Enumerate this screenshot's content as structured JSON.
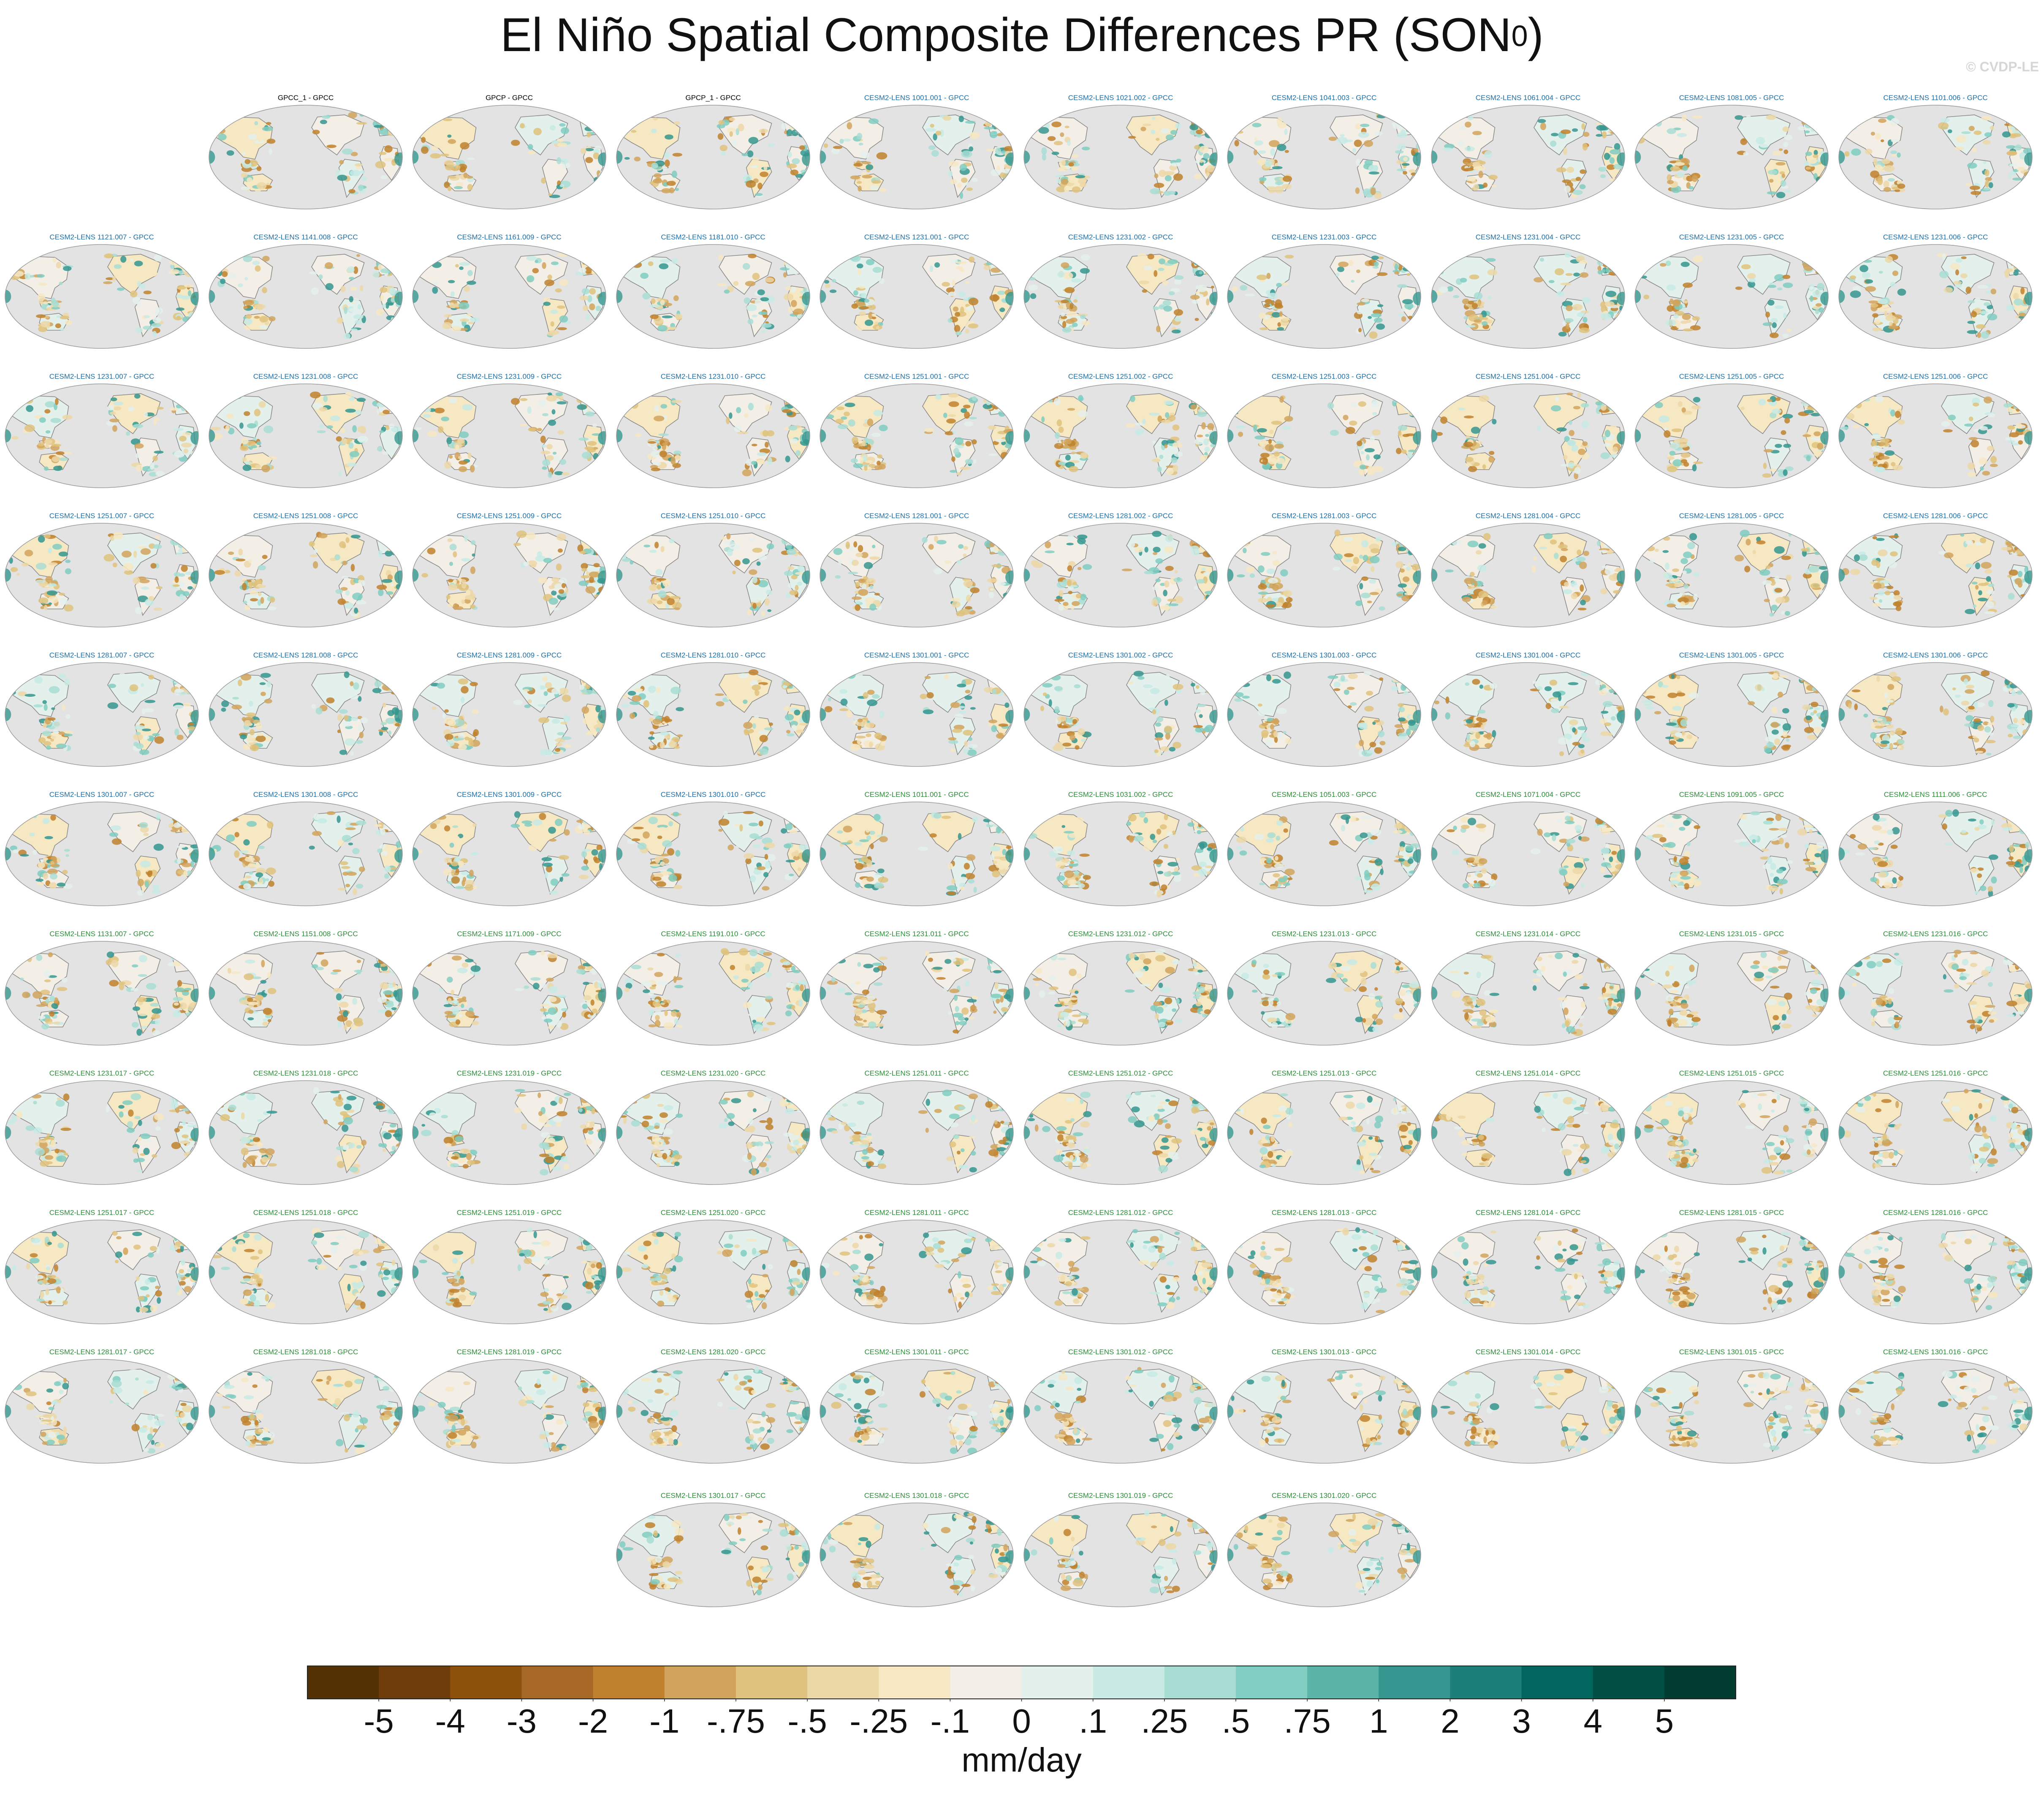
{
  "title": {
    "main": "El Niño Spatial Composite Differences PR (SON",
    "sup": "0",
    "close": ")"
  },
  "watermark": "© CVDP-LE",
  "chart_data": {
    "type": "heatmap",
    "variable": "PR",
    "season": "SON",
    "units_label": "mm/day",
    "colorbar": {
      "tick_labels": [
        "-5",
        "-4",
        "-3",
        "-2",
        "-1",
        "-.75",
        "-.5",
        "-.25",
        "-.1",
        "0",
        ".1",
        ".25",
        ".5",
        ".75",
        "1",
        "2",
        "3",
        "4",
        "5"
      ],
      "colors": [
        "#543005",
        "#6f3d0b",
        "#8c510a",
        "#a76825",
        "#bf812d",
        "#d1a35c",
        "#dfc27d",
        "#ecd7a7",
        "#f6e8c3",
        "#f3eee6",
        "#e4f0ec",
        "#c7eae5",
        "#a8ddd4",
        "#80cdc1",
        "#5ab4a8",
        "#35978f",
        "#1c8078",
        "#01665e",
        "#014f44",
        "#003c30"
      ]
    },
    "panel_groups": {
      "observations": {
        "color": "#000000"
      },
      "members_set_a": {
        "color": "#1f6fa8"
      },
      "members_set_b": {
        "color": "#2e8b3a"
      }
    },
    "panels": [
      {
        "label": "GPCC_1 - GPCC",
        "group": "observations"
      },
      {
        "label": "GPCP - GPCC",
        "group": "observations"
      },
      {
        "label": "GPCP_1 - GPCC",
        "group": "observations"
      },
      {
        "label": "CESM2-LENS 1001.001 - GPCC",
        "group": "members_set_a"
      },
      {
        "label": "CESM2-LENS 1021.002 - GPCC",
        "group": "members_set_a"
      },
      {
        "label": "CESM2-LENS 1041.003 - GPCC",
        "group": "members_set_a"
      },
      {
        "label": "CESM2-LENS 1061.004 - GPCC",
        "group": "members_set_a"
      },
      {
        "label": "CESM2-LENS 1081.005 - GPCC",
        "group": "members_set_a"
      },
      {
        "label": "CESM2-LENS 1101.006 - GPCC",
        "group": "members_set_a"
      },
      {
        "label": "CESM2-LENS 1121.007 - GPCC",
        "group": "members_set_a"
      },
      {
        "label": "CESM2-LENS 1141.008 - GPCC",
        "group": "members_set_a"
      },
      {
        "label": "CESM2-LENS 1161.009 - GPCC",
        "group": "members_set_a"
      },
      {
        "label": "CESM2-LENS 1181.010 - GPCC",
        "group": "members_set_a"
      },
      {
        "label": "CESM2-LENS 1231.001 - GPCC",
        "group": "members_set_a"
      },
      {
        "label": "CESM2-LENS 1231.002 - GPCC",
        "group": "members_set_a"
      },
      {
        "label": "CESM2-LENS 1231.003 - GPCC",
        "group": "members_set_a"
      },
      {
        "label": "CESM2-LENS 1231.004 - GPCC",
        "group": "members_set_a"
      },
      {
        "label": "CESM2-LENS 1231.005 - GPCC",
        "group": "members_set_a"
      },
      {
        "label": "CESM2-LENS 1231.006 - GPCC",
        "group": "members_set_a"
      },
      {
        "label": "CESM2-LENS 1231.007 - GPCC",
        "group": "members_set_a"
      },
      {
        "label": "CESM2-LENS 1231.008 - GPCC",
        "group": "members_set_a"
      },
      {
        "label": "CESM2-LENS 1231.009 - GPCC",
        "group": "members_set_a"
      },
      {
        "label": "CESM2-LENS 1231.010 - GPCC",
        "group": "members_set_a"
      },
      {
        "label": "CESM2-LENS 1251.001 - GPCC",
        "group": "members_set_a"
      },
      {
        "label": "CESM2-LENS 1251.002 - GPCC",
        "group": "members_set_a"
      },
      {
        "label": "CESM2-LENS 1251.003 - GPCC",
        "group": "members_set_a"
      },
      {
        "label": "CESM2-LENS 1251.004 - GPCC",
        "group": "members_set_a"
      },
      {
        "label": "CESM2-LENS 1251.005 - GPCC",
        "group": "members_set_a"
      },
      {
        "label": "CESM2-LENS 1251.006 - GPCC",
        "group": "members_set_a"
      },
      {
        "label": "CESM2-LENS 1251.007 - GPCC",
        "group": "members_set_a"
      },
      {
        "label": "CESM2-LENS 1251.008 - GPCC",
        "group": "members_set_a"
      },
      {
        "label": "CESM2-LENS 1251.009 - GPCC",
        "group": "members_set_a"
      },
      {
        "label": "CESM2-LENS 1251.010 - GPCC",
        "group": "members_set_a"
      },
      {
        "label": "CESM2-LENS 1281.001 - GPCC",
        "group": "members_set_a"
      },
      {
        "label": "CESM2-LENS 1281.002 - GPCC",
        "group": "members_set_a"
      },
      {
        "label": "CESM2-LENS 1281.003 - GPCC",
        "group": "members_set_a"
      },
      {
        "label": "CESM2-LENS 1281.004 - GPCC",
        "group": "members_set_a"
      },
      {
        "label": "CESM2-LENS 1281.005 - GPCC",
        "group": "members_set_a"
      },
      {
        "label": "CESM2-LENS 1281.006 - GPCC",
        "group": "members_set_a"
      },
      {
        "label": "CESM2-LENS 1281.007 - GPCC",
        "group": "members_set_a"
      },
      {
        "label": "CESM2-LENS 1281.008 - GPCC",
        "group": "members_set_a"
      },
      {
        "label": "CESM2-LENS 1281.009 - GPCC",
        "group": "members_set_a"
      },
      {
        "label": "CESM2-LENS 1281.010 - GPCC",
        "group": "members_set_a"
      },
      {
        "label": "CESM2-LENS 1301.001 - GPCC",
        "group": "members_set_a"
      },
      {
        "label": "CESM2-LENS 1301.002 - GPCC",
        "group": "members_set_a"
      },
      {
        "label": "CESM2-LENS 1301.003 - GPCC",
        "group": "members_set_a"
      },
      {
        "label": "CESM2-LENS 1301.004 - GPCC",
        "group": "members_set_a"
      },
      {
        "label": "CESM2-LENS 1301.005 - GPCC",
        "group": "members_set_a"
      },
      {
        "label": "CESM2-LENS 1301.006 - GPCC",
        "group": "members_set_a"
      },
      {
        "label": "CESM2-LENS 1301.007 - GPCC",
        "group": "members_set_a"
      },
      {
        "label": "CESM2-LENS 1301.008 - GPCC",
        "group": "members_set_a"
      },
      {
        "label": "CESM2-LENS 1301.009 - GPCC",
        "group": "members_set_a"
      },
      {
        "label": "CESM2-LENS 1301.010 - GPCC",
        "group": "members_set_a"
      },
      {
        "label": "CESM2-LENS 1011.001 - GPCC",
        "group": "members_set_b"
      },
      {
        "label": "CESM2-LENS 1031.002 - GPCC",
        "group": "members_set_b"
      },
      {
        "label": "CESM2-LENS 1051.003 - GPCC",
        "group": "members_set_b"
      },
      {
        "label": "CESM2-LENS 1071.004 - GPCC",
        "group": "members_set_b"
      },
      {
        "label": "CESM2-LENS 1091.005 - GPCC",
        "group": "members_set_b"
      },
      {
        "label": "CESM2-LENS 1111.006 - GPCC",
        "group": "members_set_b"
      },
      {
        "label": "CESM2-LENS 1131.007 - GPCC",
        "group": "members_set_b"
      },
      {
        "label": "CESM2-LENS 1151.008 - GPCC",
        "group": "members_set_b"
      },
      {
        "label": "CESM2-LENS 1171.009 - GPCC",
        "group": "members_set_b"
      },
      {
        "label": "CESM2-LENS 1191.010 - GPCC",
        "group": "members_set_b"
      },
      {
        "label": "CESM2-LENS 1231.011 - GPCC",
        "group": "members_set_b"
      },
      {
        "label": "CESM2-LENS 1231.012 - GPCC",
        "group": "members_set_b"
      },
      {
        "label": "CESM2-LENS 1231.013 - GPCC",
        "group": "members_set_b"
      },
      {
        "label": "CESM2-LENS 1231.014 - GPCC",
        "group": "members_set_b"
      },
      {
        "label": "CESM2-LENS 1231.015 - GPCC",
        "group": "members_set_b"
      },
      {
        "label": "CESM2-LENS 1231.016 - GPCC",
        "group": "members_set_b"
      },
      {
        "label": "CESM2-LENS 1231.017 - GPCC",
        "group": "members_set_b"
      },
      {
        "label": "CESM2-LENS 1231.018 - GPCC",
        "group": "members_set_b"
      },
      {
        "label": "CESM2-LENS 1231.019 - GPCC",
        "group": "members_set_b"
      },
      {
        "label": "CESM2-LENS 1231.020 - GPCC",
        "group": "members_set_b"
      },
      {
        "label": "CESM2-LENS 1251.011 - GPCC",
        "group": "members_set_b"
      },
      {
        "label": "CESM2-LENS 1251.012 - GPCC",
        "group": "members_set_b"
      },
      {
        "label": "CESM2-LENS 1251.013 - GPCC",
        "group": "members_set_b"
      },
      {
        "label": "CESM2-LENS 1251.014 - GPCC",
        "group": "members_set_b"
      },
      {
        "label": "CESM2-LENS 1251.015 - GPCC",
        "group": "members_set_b"
      },
      {
        "label": "CESM2-LENS 1251.016 - GPCC",
        "group": "members_set_b"
      },
      {
        "label": "CESM2-LENS 1251.017 - GPCC",
        "group": "members_set_b"
      },
      {
        "label": "CESM2-LENS 1251.018 - GPCC",
        "group": "members_set_b"
      },
      {
        "label": "CESM2-LENS 1251.019 - GPCC",
        "group": "members_set_b"
      },
      {
        "label": "CESM2-LENS 1251.020 - GPCC",
        "group": "members_set_b"
      },
      {
        "label": "CESM2-LENS 1281.011 - GPCC",
        "group": "members_set_b"
      },
      {
        "label": "CESM2-LENS 1281.012 - GPCC",
        "group": "members_set_b"
      },
      {
        "label": "CESM2-LENS 1281.013 - GPCC",
        "group": "members_set_b"
      },
      {
        "label": "CESM2-LENS 1281.014 - GPCC",
        "group": "members_set_b"
      },
      {
        "label": "CESM2-LENS 1281.015 - GPCC",
        "group": "members_set_b"
      },
      {
        "label": "CESM2-LENS 1281.016 - GPCC",
        "group": "members_set_b"
      },
      {
        "label": "CESM2-LENS 1281.017 - GPCC",
        "group": "members_set_b"
      },
      {
        "label": "CESM2-LENS 1281.018 - GPCC",
        "group": "members_set_b"
      },
      {
        "label": "CESM2-LENS 1281.019 - GPCC",
        "group": "members_set_b"
      },
      {
        "label": "CESM2-LENS 1281.020 - GPCC",
        "group": "members_set_b"
      },
      {
        "label": "CESM2-LENS 1301.011 - GPCC",
        "group": "members_set_b"
      },
      {
        "label": "CESM2-LENS 1301.012 - GPCC",
        "group": "members_set_b"
      },
      {
        "label": "CESM2-LENS 1301.013 - GPCC",
        "group": "members_set_b"
      },
      {
        "label": "CESM2-LENS 1301.014 - GPCC",
        "group": "members_set_b"
      },
      {
        "label": "CESM2-LENS 1301.015 - GPCC",
        "group": "members_set_b"
      },
      {
        "label": "CESM2-LENS 1301.016 - GPCC",
        "group": "members_set_b"
      },
      {
        "label": "CESM2-LENS 1301.017 - GPCC",
        "group": "members_set_b"
      },
      {
        "label": "CESM2-LENS 1301.018 - GPCC",
        "group": "members_set_b"
      },
      {
        "label": "CESM2-LENS 1301.019 - GPCC",
        "group": "members_set_b"
      },
      {
        "label": "CESM2-LENS 1301.020 - GPCC",
        "group": "members_set_b"
      }
    ]
  }
}
